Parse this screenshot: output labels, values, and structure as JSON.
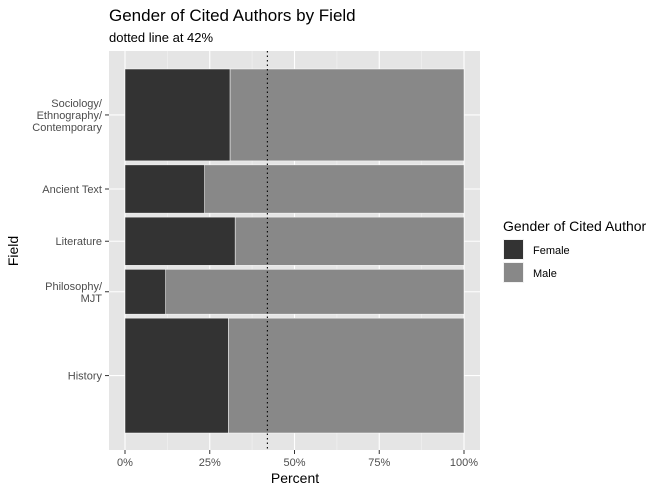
{
  "chart_data": {
    "type": "bar",
    "orientation": "horizontal",
    "stacked": true,
    "normalized_percent": true,
    "title": "Gender of Cited Authors by Field",
    "subtitle": "dotted line at 42%",
    "xlabel": "Percent",
    "ylabel": "Field",
    "xlim": [
      0,
      100
    ],
    "x_ticks": [
      "0%",
      "25%",
      "50%",
      "75%",
      "100%"
    ],
    "x_tick_values": [
      0,
      25,
      50,
      75,
      100
    ],
    "grid": true,
    "legend_position": "right",
    "legend_title": "Gender of Cited Author",
    "reference_line": {
      "value": 42,
      "style": "dotted"
    },
    "categories": [
      {
        "lines": [
          "History"
        ],
        "relative_size": 1.0
      },
      {
        "lines": [
          "Philosophy/",
          "MJT"
        ],
        "relative_size": 0.39
      },
      {
        "lines": [
          "Literature"
        ],
        "relative_size": 0.42
      },
      {
        "lines": [
          "Ancient Text"
        ],
        "relative_size": 0.42
      },
      {
        "lines": [
          "Sociology/",
          "Ethnography/",
          "Contemporary"
        ],
        "relative_size": 0.8
      }
    ],
    "series": [
      {
        "name": "Female",
        "color": "#333333",
        "values": [
          30.5,
          12,
          32.5,
          23.5,
          31
        ]
      },
      {
        "name": "Male",
        "color": "#888888",
        "values": [
          69.5,
          88,
          67.5,
          76.5,
          69
        ]
      }
    ],
    "panel_color": "#e5e5e5"
  }
}
